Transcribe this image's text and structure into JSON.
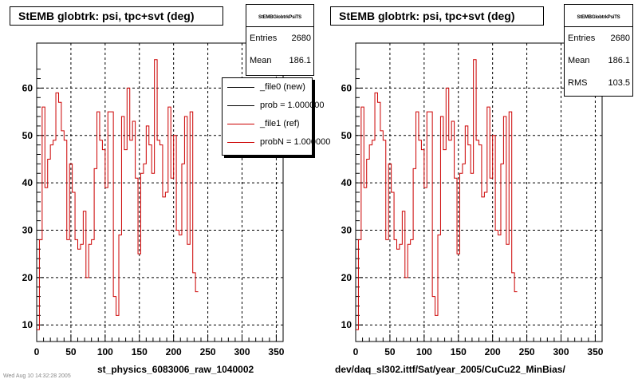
{
  "chart_data": [
    {
      "type": "line",
      "title": "StEMB globtrk: psi, tpc+svt (deg)",
      "xlabel": "st_physics_6083006_raw_1040002",
      "xlim": [
        0,
        360
      ],
      "ylim": [
        6.5,
        69.5
      ],
      "x_ticks": [
        0,
        50,
        100,
        150,
        200,
        250,
        300,
        350
      ],
      "y_ticks": [
        10,
        20,
        30,
        40,
        50,
        60
      ],
      "grid": true,
      "stats": {
        "name": "StEMBGlobtrkPsiTS",
        "rows": [
          {
            "label": "Entries",
            "value": "2680"
          },
          {
            "label": "Mean",
            "value": "186.1"
          }
        ]
      },
      "legend": {
        "placement": "top-right",
        "entries": [
          {
            "label": "_file0 (new)",
            "color": "#000000"
          },
          {
            "label": "prob = 1.000000",
            "color": "#000000"
          },
          {
            "label": "_file1 (ref)",
            "color": "#cc0000"
          },
          {
            "label": "probN = 1.000000",
            "color": "#cc0000"
          }
        ]
      },
      "series": [
        {
          "name": "_file1 (ref)",
          "color": "#cc0000",
          "bin_width": 4,
          "values": [
            9,
            28,
            56,
            39,
            45,
            48,
            49,
            59,
            57,
            51,
            49,
            28,
            44,
            38,
            28,
            26,
            27,
            34,
            20,
            27,
            28,
            43,
            55,
            49,
            47,
            39,
            55,
            55,
            16,
            12,
            29,
            54,
            47,
            60,
            49,
            53,
            41,
            25,
            42,
            44,
            52,
            48,
            42,
            66,
            49,
            48,
            37,
            38,
            56,
            41,
            50,
            30,
            29,
            44,
            54,
            27,
            55,
            21,
            17
          ]
        }
      ]
    },
    {
      "type": "line",
      "title": "StEMB globtrk: psi, tpc+svt (deg)",
      "xlabel": "dev/daq_sl302.ittf/Sat/year_2005/CuCu22_MinBias/",
      "xlim": [
        0,
        360
      ],
      "ylim": [
        6.5,
        69.5
      ],
      "x_ticks": [
        0,
        50,
        100,
        150,
        200,
        250,
        300,
        350
      ],
      "y_ticks": [
        10,
        20,
        30,
        40,
        50,
        60
      ],
      "grid": true,
      "stats": {
        "name": "StEMBGlobtrkPsiTS",
        "rows": [
          {
            "label": "Entries",
            "value": "2680"
          },
          {
            "label": "Mean",
            "value": "186.1"
          },
          {
            "label": "RMS",
            "value": "103.5"
          }
        ]
      },
      "series": [
        {
          "name": "_file1 (ref)",
          "color": "#cc0000",
          "bin_width": 4,
          "values": [
            9,
            28,
            56,
            39,
            45,
            48,
            49,
            59,
            57,
            51,
            49,
            28,
            44,
            38,
            28,
            26,
            27,
            34,
            20,
            27,
            28,
            43,
            55,
            49,
            47,
            39,
            55,
            55,
            16,
            12,
            29,
            54,
            47,
            60,
            49,
            53,
            41,
            25,
            42,
            44,
            52,
            48,
            42,
            66,
            49,
            48,
            37,
            38,
            56,
            41,
            50,
            30,
            29,
            44,
            54,
            27,
            55,
            21,
            17
          ]
        }
      ]
    }
  ],
  "footnote": "Wed Aug 10 14:32:28 2005"
}
